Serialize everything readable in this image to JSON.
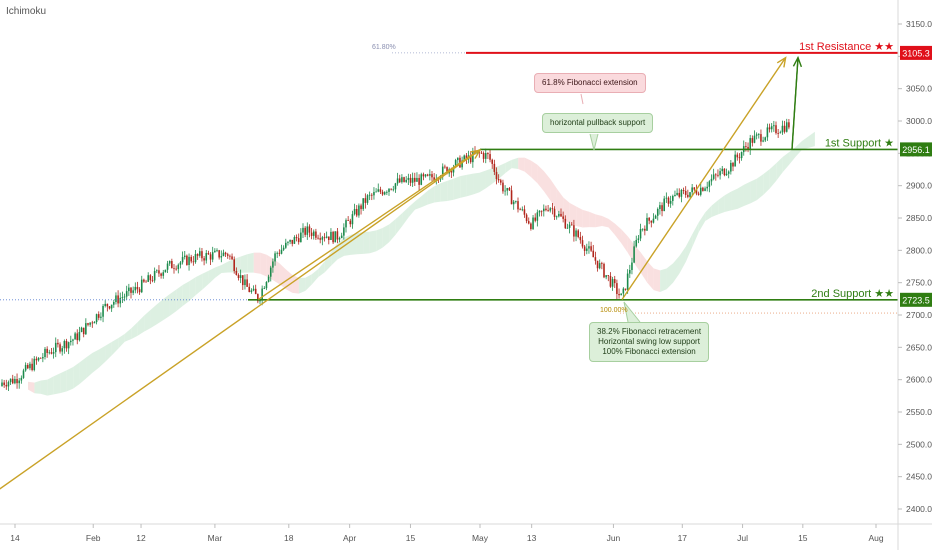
{
  "indicator_label": "Ichimoku",
  "colors": {
    "resistance": "#e0101a",
    "support": "#2f7d12",
    "trend": "#c9a227",
    "bull": "#1c8a4c",
    "bear": "#b1261c",
    "cloud_green": "#cfead6",
    "cloud_red": "#f6d3d3"
  },
  "notes": {
    "fib_extension": "61.8% Fibonacci extension",
    "pullback": "horizontal pullback support",
    "swing_lines": [
      "38.2% Fibonacci retracement",
      "Horizontal swing low support",
      "100% Fibonacci extension"
    ]
  },
  "fib_tags": {
    "fib_618": "61.80%",
    "fib_100": "100.00%"
  },
  "chart_data": {
    "type": "line",
    "title": "",
    "x_ticks": [
      "14",
      "Feb",
      "12",
      "Mar",
      "18",
      "Apr",
      "15",
      "May",
      "13",
      "Jun",
      "17",
      "Jul",
      "15",
      "Aug"
    ],
    "y_ticks": [
      "3150.0",
      "3100.0",
      "3050.0",
      "3000.0",
      "2950.0",
      "2900.0",
      "2850.0",
      "2800.0",
      "2750.0",
      "2700.0",
      "2650.0",
      "2600.0",
      "2550.0",
      "2500.0",
      "2450.0",
      "2400.0"
    ],
    "ylim": [
      2385,
      3172
    ],
    "levels": [
      {
        "name": "1st Resistance ★★",
        "value": 3105.3,
        "tag": "3105.3",
        "kind": "resistance"
      },
      {
        "name": "1st Support ★",
        "value": 2956.1,
        "tag": "2956.1",
        "kind": "support"
      },
      {
        "name": "2nd Support ★★",
        "value": 2723.5,
        "tag": "2723.5",
        "kind": "support"
      }
    ],
    "price_path": [
      [
        "Jan 07",
        2590
      ],
      [
        "Jan 14",
        2600
      ],
      [
        "Jan 21",
        2640
      ],
      [
        "Jan 28",
        2665
      ],
      [
        "Feb 04",
        2715
      ],
      [
        "Feb 11",
        2740
      ],
      [
        "Feb 18",
        2775
      ],
      [
        "Feb 25",
        2790
      ],
      [
        "Mar 04",
        2795
      ],
      [
        "Mar 08",
        2745
      ],
      [
        "Mar 11",
        2725
      ],
      [
        "Mar 15",
        2795
      ],
      [
        "Mar 22",
        2830
      ],
      [
        "Mar 29",
        2820
      ],
      [
        "Apr 05",
        2880
      ],
      [
        "Apr 12",
        2905
      ],
      [
        "Apr 19",
        2910
      ],
      [
        "Apr 26",
        2935
      ],
      [
        "May 01",
        2950
      ],
      [
        "May 03",
        2945
      ],
      [
        "May 06",
        2900
      ],
      [
        "May 13",
        2840
      ],
      [
        "May 17",
        2870
      ],
      [
        "May 24",
        2820
      ],
      [
        "May 31",
        2755
      ],
      [
        "Jun 03",
        2725
      ],
      [
        "Jun 07",
        2830
      ],
      [
        "Jun 14",
        2880
      ],
      [
        "Jun 21",
        2895
      ],
      [
        "Jun 28",
        2930
      ],
      [
        "Jul 03",
        2970
      ],
      [
        "Jul 08",
        2985
      ],
      [
        "Jul 12",
        2995
      ]
    ],
    "trend_lines": [
      {
        "from": [
          "Jan 05",
          2405
        ],
        "to": [
          "May 01",
          2955
        ]
      },
      {
        "from": [
          "Mar 11",
          2724
        ],
        "to": [
          "May 01",
          2956
        ]
      },
      {
        "from": [
          "Jun 03",
          2724
        ],
        "to": [
          "Jul 11",
          3098
        ]
      }
    ],
    "target_arrow": {
      "from": [
        "Jul 15",
        2956
      ],
      "to": [
        "Jul 15",
        3098
      ]
    }
  }
}
